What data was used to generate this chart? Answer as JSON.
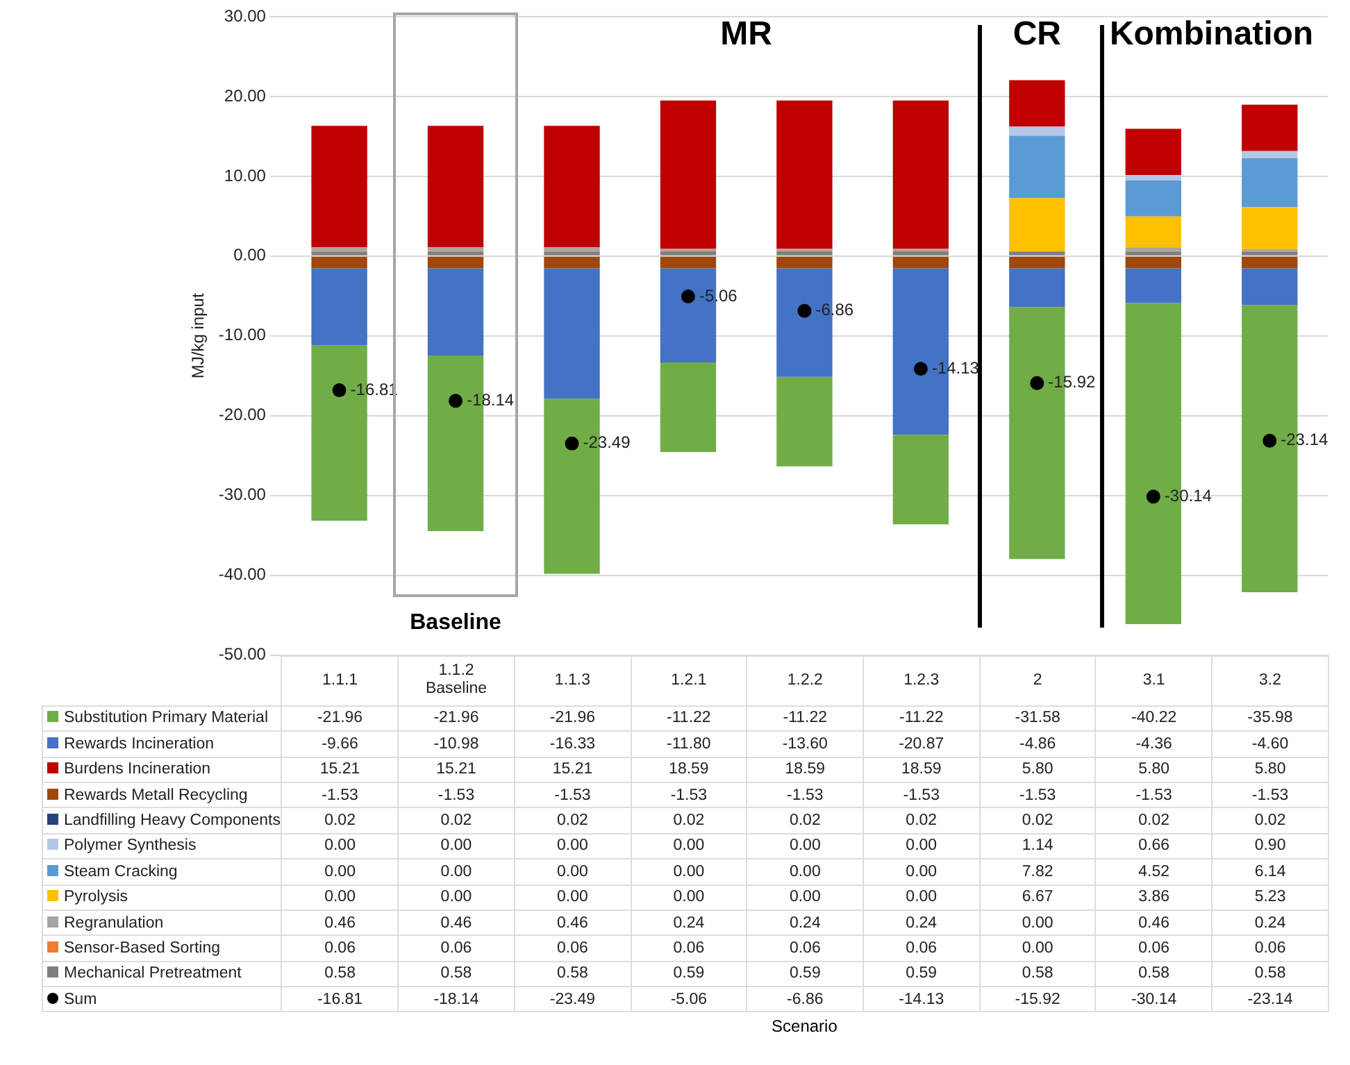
{
  "chart_data": {
    "type": "bar",
    "stacked": true,
    "ylabel": "MJ/kg input",
    "categories": [
      "1.1.1",
      "1.1.2\nBaseline",
      "1.1.3",
      "1.2.1",
      "1.2.2",
      "1.2.3",
      "2",
      "3.1",
      "3.2"
    ],
    "ylim": [
      -50,
      30
    ],
    "yticks": [
      {
        "value": -50,
        "label": "-50.00"
      },
      {
        "value": -40,
        "label": "-40.00"
      },
      {
        "value": -30,
        "label": "-30.00"
      },
      {
        "value": -20,
        "label": "-20.00"
      },
      {
        "value": -10,
        "label": "-10.00"
      },
      {
        "value": 0,
        "label": "0.00"
      },
      {
        "value": 10,
        "label": "10.00"
      },
      {
        "value": 20,
        "label": "20.00"
      },
      {
        "value": 30,
        "label": "30.00"
      }
    ],
    "grid": "y",
    "legend": "bottom",
    "annotations": [
      "MR",
      "CR",
      "Kombination",
      "Baseline",
      "Scenario"
    ],
    "series": [
      {
        "name": "Mechanical Pretreatment",
        "color": "#7f7f7f",
        "values": [
          0.58,
          0.58,
          0.58,
          0.59,
          0.59,
          0.59,
          0.58,
          0.58,
          0.58
        ],
        "value_labels": [
          "0.58",
          "0.58",
          "0.58",
          "0.59",
          "0.59",
          "0.59",
          "0.58",
          "0.58",
          "0.58"
        ]
      },
      {
        "name": "Sensor-Based Sorting",
        "color": "#ed7d31",
        "values": [
          0.06,
          0.06,
          0.06,
          0.06,
          0.06,
          0.06,
          0.0,
          0.06,
          0.06
        ],
        "value_labels": [
          "0.06",
          "0.06",
          "0.06",
          "0.06",
          "0.06",
          "0.06",
          "0.00",
          "0.06",
          "0.06"
        ]
      },
      {
        "name": "Regranulation",
        "color": "#a5a5a5",
        "values": [
          0.46,
          0.46,
          0.46,
          0.24,
          0.24,
          0.24,
          0.0,
          0.46,
          0.24
        ],
        "value_labels": [
          "0.46",
          "0.46",
          "0.46",
          "0.24",
          "0.24",
          "0.24",
          "0.00",
          "0.46",
          "0.24"
        ]
      },
      {
        "name": "Pyrolysis",
        "color": "#ffc000",
        "values": [
          0.0,
          0.0,
          0.0,
          0.0,
          0.0,
          0.0,
          6.67,
          3.86,
          5.23
        ],
        "value_labels": [
          "0.00",
          "0.00",
          "0.00",
          "0.00",
          "0.00",
          "0.00",
          "6.67",
          "3.86",
          "5.23"
        ]
      },
      {
        "name": "Steam Cracking",
        "color": "#5b9bd5",
        "values": [
          0.0,
          0.0,
          0.0,
          0.0,
          0.0,
          0.0,
          7.82,
          4.52,
          6.14
        ],
        "value_labels": [
          "0.00",
          "0.00",
          "0.00",
          "0.00",
          "0.00",
          "0.00",
          "7.82",
          "4.52",
          "6.14"
        ]
      },
      {
        "name": "Polymer Synthesis",
        "color": "#b4c7e7",
        "values": [
          0.0,
          0.0,
          0.0,
          0.0,
          0.0,
          0.0,
          1.14,
          0.66,
          0.9
        ],
        "value_labels": [
          "0.00",
          "0.00",
          "0.00",
          "0.00",
          "0.00",
          "0.00",
          "1.14",
          "0.66",
          "0.90"
        ]
      },
      {
        "name": "Landfilling Heavy Components",
        "color": "#264478",
        "values": [
          0.02,
          0.02,
          0.02,
          0.02,
          0.02,
          0.02,
          0.02,
          0.02,
          0.02
        ],
        "value_labels": [
          "0.02",
          "0.02",
          "0.02",
          "0.02",
          "0.02",
          "0.02",
          "0.02",
          "0.02",
          "0.02"
        ]
      },
      {
        "name": "Rewards Metall Recycling",
        "color": "#9e480e",
        "values": [
          -1.53,
          -1.53,
          -1.53,
          -1.53,
          -1.53,
          -1.53,
          -1.53,
          -1.53,
          -1.53
        ],
        "value_labels": [
          "-1.53",
          "-1.53",
          "-1.53",
          "-1.53",
          "-1.53",
          "-1.53",
          "-1.53",
          "-1.53",
          "-1.53"
        ]
      },
      {
        "name": "Burdens Incineration",
        "color": "#c00000",
        "values": [
          15.21,
          15.21,
          15.21,
          18.59,
          18.59,
          18.59,
          5.8,
          5.8,
          5.8
        ],
        "value_labels": [
          "15.21",
          "15.21",
          "15.21",
          "18.59",
          "18.59",
          "18.59",
          "5.80",
          "5.80",
          "5.80"
        ]
      },
      {
        "name": "Rewards Incineration",
        "color": "#4472c4",
        "values": [
          -9.66,
          -10.98,
          -16.33,
          -11.8,
          -13.6,
          -20.87,
          -4.86,
          -4.36,
          -4.6
        ],
        "value_labels": [
          "-9.66",
          "-10.98",
          "-16.33",
          "-11.80",
          "-13.60",
          "-20.87",
          "-4.86",
          "-4.36",
          "-4.60"
        ]
      },
      {
        "name": "Substitution Primary Material",
        "color": "#70ad47",
        "values": [
          -21.96,
          -21.96,
          -21.96,
          -11.22,
          -11.22,
          -11.22,
          -31.58,
          -40.22,
          -35.98
        ],
        "value_labels": [
          "-21.96",
          "-21.96",
          "-21.96",
          "-11.22",
          "-11.22",
          "-11.22",
          "-31.58",
          "-40.22",
          "-35.98"
        ]
      },
      {
        "name": "Sum",
        "type": "scatter",
        "marker": "circle",
        "color": "#000000",
        "values": [
          -16.81,
          -18.14,
          -23.49,
          -5.06,
          -6.86,
          -14.13,
          -15.92,
          -30.14,
          -23.14
        ],
        "value_labels": [
          "-16.81",
          "-18.14",
          "-23.49",
          "-5.06",
          "-6.86",
          "-14.13",
          "-15.92",
          "-30.14",
          "-23.14"
        ]
      }
    ]
  }
}
